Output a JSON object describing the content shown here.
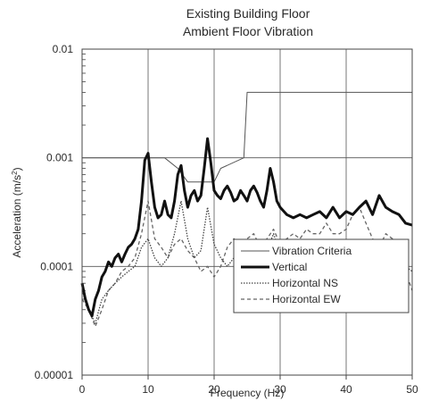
{
  "chart_data": {
    "type": "line",
    "title": "Existing Building Floor",
    "subtitle": "Ambient Floor Vibration",
    "xlabel": "Frequency (Hz)",
    "ylabel": "Acceleration (m/s",
    "ylabel_superscript": "2",
    "ylabel_suffix": ")",
    "xlim": [
      0,
      50
    ],
    "ylim": [
      1e-05,
      0.01
    ],
    "yscale": "log",
    "grid": true,
    "legend_position": "bottom-right",
    "x_ticks": [
      0,
      10,
      20,
      30,
      40,
      50
    ],
    "x_tick_labels": [
      "0",
      "10",
      "20",
      "30",
      "40",
      "50"
    ],
    "y_ticks": [
      1e-05,
      0.0001,
      0.001,
      0.01
    ],
    "y_tick_labels": [
      "0.00001",
      "0.0001",
      "0.001",
      "0.01"
    ],
    "series": [
      {
        "name": "Vibration Criteria",
        "color": "#555555",
        "style": "thin",
        "x": [
          0,
          12.5,
          14.5,
          16,
          20,
          21,
          24.5,
          25,
          50
        ],
        "y": [
          0.001,
          0.001,
          0.0008,
          0.0006,
          0.0006,
          0.0008,
          0.001,
          0.004,
          0.004
        ]
      },
      {
        "name": "Vertical",
        "color": "#111111",
        "style": "thick",
        "x": [
          0,
          0.5,
          1,
          1.5,
          2,
          2.5,
          3,
          3.5,
          4,
          4.5,
          5,
          5.5,
          6,
          6.5,
          7,
          7.5,
          8,
          8.5,
          9,
          9.5,
          10,
          10.5,
          11,
          11.5,
          12,
          12.5,
          13,
          13.5,
          14,
          14.5,
          15,
          15.5,
          16,
          16.5,
          17,
          17.5,
          18,
          18.5,
          19,
          19.5,
          20,
          20.5,
          21,
          21.5,
          22,
          22.5,
          23,
          23.5,
          24,
          24.5,
          25,
          25.5,
          26,
          26.5,
          27,
          27.5,
          28,
          28.5,
          29,
          29.5,
          30,
          31,
          32,
          33,
          34,
          35,
          36,
          37,
          38,
          39,
          40,
          41,
          42,
          43,
          44,
          45,
          46,
          47,
          48,
          49,
          50
        ],
        "y": [
          7e-05,
          5e-05,
          4e-05,
          3.5e-05,
          5e-05,
          6e-05,
          8e-05,
          9e-05,
          0.00011,
          0.0001,
          0.00012,
          0.00013,
          0.00011,
          0.00013,
          0.00015,
          0.00016,
          0.00018,
          0.00022,
          0.0004,
          0.00095,
          0.0011,
          0.0006,
          0.00035,
          0.00028,
          0.0003,
          0.0004,
          0.0003,
          0.00028,
          0.0004,
          0.0007,
          0.00085,
          0.0005,
          0.00035,
          0.00045,
          0.0005,
          0.0004,
          0.00045,
          0.0008,
          0.0015,
          0.0009,
          0.0005,
          0.00045,
          0.00042,
          0.0005,
          0.00055,
          0.00048,
          0.0004,
          0.00042,
          0.0005,
          0.00045,
          0.0004,
          0.0005,
          0.00055,
          0.00048,
          0.0004,
          0.00035,
          0.0005,
          0.0008,
          0.0006,
          0.0004,
          0.00035,
          0.0003,
          0.00028,
          0.0003,
          0.00028,
          0.0003,
          0.00032,
          0.00028,
          0.00035,
          0.00028,
          0.00032,
          0.0003,
          0.00035,
          0.0004,
          0.0003,
          0.00045,
          0.00035,
          0.00032,
          0.0003,
          0.00025,
          0.00024
        ]
      },
      {
        "name": "Horizontal NS",
        "color": "#444444",
        "style": "dot",
        "x": [
          0,
          1,
          2,
          3,
          4,
          5,
          6,
          7,
          8,
          9,
          10,
          11,
          12,
          13,
          14,
          15,
          16,
          17,
          18,
          19,
          20,
          21,
          22,
          23,
          24,
          25,
          26,
          27,
          28,
          29,
          30,
          31,
          32,
          33,
          34,
          35,
          36,
          37,
          38,
          39,
          40,
          41,
          42,
          43,
          44,
          45,
          46,
          47,
          48,
          49,
          50
        ],
        "y": [
          6e-05,
          4e-05,
          3e-05,
          5e-05,
          6e-05,
          7e-05,
          8e-05,
          9e-05,
          0.0001,
          0.00015,
          0.00018,
          0.00012,
          0.0001,
          0.00012,
          0.0002,
          0.0004,
          0.00018,
          0.00012,
          0.00014,
          0.00035,
          0.00016,
          0.00012,
          0.0001,
          0.00012,
          0.00014,
          0.00013,
          0.00012,
          0.0001,
          0.00014,
          0.0002,
          0.00013,
          0.00012,
          0.00011,
          0.00012,
          0.0001,
          0.00011,
          0.00012,
          0.0001,
          0.00012,
          0.00011,
          0.0001,
          0.00012,
          0.00011,
          0.00013,
          0.0001,
          0.00012,
          0.00011,
          0.0001,
          0.00012,
          0.0001,
          9e-05
        ]
      },
      {
        "name": "Horizontal EW",
        "color": "#666666",
        "style": "dash",
        "x": [
          0,
          1,
          2,
          3,
          4,
          5,
          6,
          7,
          8,
          9,
          10,
          11,
          12,
          13,
          14,
          15,
          16,
          17,
          18,
          19,
          20,
          21,
          22,
          23,
          24,
          25,
          26,
          27,
          28,
          29,
          30,
          31,
          32,
          33,
          34,
          35,
          36,
          37,
          38,
          39,
          40,
          41,
          42,
          43,
          44,
          45,
          46,
          47,
          48,
          49,
          50
        ],
        "y": [
          5e-05,
          4e-05,
          2.8e-05,
          4e-05,
          6e-05,
          7e-05,
          9e-05,
          0.0001,
          0.00012,
          0.0002,
          0.0004,
          0.00018,
          0.00015,
          0.00012,
          0.00016,
          0.00018,
          0.00014,
          0.00012,
          9e-05,
          0.0001,
          8e-05,
          0.0001,
          0.00015,
          0.00018,
          0.00016,
          0.00018,
          0.0002,
          0.00015,
          0.00018,
          0.00022,
          0.00016,
          0.00018,
          0.0002,
          0.00018,
          0.00022,
          0.0002,
          0.0002,
          0.00025,
          0.0002,
          0.0002,
          0.00022,
          0.0003,
          0.00035,
          0.00025,
          0.00018,
          0.00015,
          0.0002,
          0.00018,
          0.00012,
          9e-05,
          6e-05
        ]
      }
    ]
  }
}
